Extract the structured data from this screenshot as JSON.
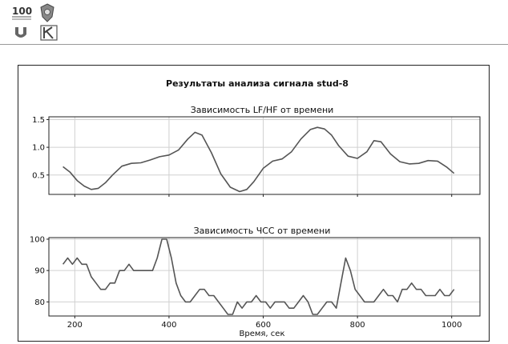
{
  "header": {
    "logos": [
      "logo-100-years",
      "logo-coat-of-arms",
      "logo-u-emblem",
      "logo-k-emblem"
    ]
  },
  "colors": {
    "line": "#555555",
    "grid": "#d0d0d0",
    "text": "#111111",
    "frame": "#222222"
  },
  "chart_data": [
    {
      "type": "line",
      "suptitle": "Результаты анализа сигнала stud-8",
      "title": "Зависимость LF/HF от времени",
      "xlabel": "",
      "ylabel": "",
      "xlim": [
        145,
        1060
      ],
      "ylim": [
        0.15,
        1.55
      ],
      "yticks": [
        0.5,
        1.0,
        1.5
      ],
      "ytick_labels": [
        "0.5",
        "1.0",
        "1.5"
      ],
      "xticks": [
        200,
        400,
        600,
        800,
        1000
      ],
      "show_xtick_labels": false,
      "grid": true,
      "series": [
        {
          "x": [
            175,
            190,
            205,
            220,
            235,
            250,
            265,
            280,
            300,
            320,
            340,
            360,
            380,
            400,
            420,
            440,
            455,
            470,
            490,
            510,
            530,
            550,
            565,
            580,
            600,
            620,
            640,
            660,
            680,
            700,
            715,
            730,
            745,
            760,
            780,
            800,
            820,
            835,
            850,
            870,
            890,
            910,
            930,
            950,
            970,
            990,
            1005
          ],
          "y": [
            0.65,
            0.55,
            0.4,
            0.3,
            0.24,
            0.26,
            0.36,
            0.5,
            0.66,
            0.71,
            0.72,
            0.77,
            0.83,
            0.86,
            0.95,
            1.15,
            1.27,
            1.22,
            0.9,
            0.52,
            0.28,
            0.2,
            0.24,
            0.38,
            0.62,
            0.75,
            0.79,
            0.92,
            1.15,
            1.32,
            1.36,
            1.33,
            1.22,
            1.03,
            0.84,
            0.8,
            0.92,
            1.12,
            1.1,
            0.88,
            0.74,
            0.7,
            0.71,
            0.76,
            0.75,
            0.64,
            0.53
          ]
        }
      ]
    },
    {
      "type": "line",
      "title": "Зависимость ЧСС от времени",
      "xlabel": "Время, сек",
      "ylabel": "",
      "xlim": [
        145,
        1060
      ],
      "ylim": [
        75.5,
        100.5
      ],
      "yticks": [
        80,
        90,
        100
      ],
      "ytick_labels": [
        "80",
        "90",
        "100"
      ],
      "xticks": [
        200,
        400,
        600,
        800,
        1000
      ],
      "xtick_labels": [
        "200",
        "400",
        "600",
        "800",
        "1000"
      ],
      "grid": true,
      "series": [
        {
          "x": [
            175,
            185,
            195,
            205,
            215,
            225,
            235,
            245,
            255,
            265,
            275,
            285,
            295,
            305,
            315,
            325,
            335,
            345,
            355,
            365,
            375,
            385,
            395,
            405,
            415,
            425,
            435,
            445,
            455,
            465,
            475,
            485,
            495,
            505,
            515,
            525,
            535,
            545,
            555,
            565,
            575,
            585,
            595,
            605,
            615,
            625,
            635,
            645,
            655,
            665,
            675,
            685,
            695,
            705,
            715,
            725,
            735,
            745,
            755,
            765,
            775,
            785,
            795,
            805,
            815,
            825,
            835,
            845,
            855,
            865,
            875,
            885,
            895,
            905,
            915,
            925,
            935,
            945,
            955,
            965,
            975,
            985,
            995,
            1005
          ],
          "y": [
            92,
            94,
            92,
            94,
            92,
            92,
            88,
            86,
            84,
            84,
            86,
            86,
            90,
            90,
            92,
            90,
            90,
            90,
            90,
            90,
            94,
            100,
            100,
            94,
            86,
            82,
            80,
            80,
            82,
            84,
            84,
            82,
            82,
            80,
            78,
            76,
            76,
            80,
            78,
            80,
            80,
            82,
            80,
            80,
            78,
            80,
            80,
            80,
            78,
            78,
            80,
            82,
            80,
            76,
            76,
            78,
            80,
            80,
            78,
            86,
            94,
            90,
            84,
            82,
            80,
            80,
            80,
            82,
            84,
            82,
            82,
            80,
            84,
            84,
            86,
            84,
            84,
            82,
            82,
            82,
            84,
            82,
            82,
            84
          ]
        }
      ]
    }
  ]
}
